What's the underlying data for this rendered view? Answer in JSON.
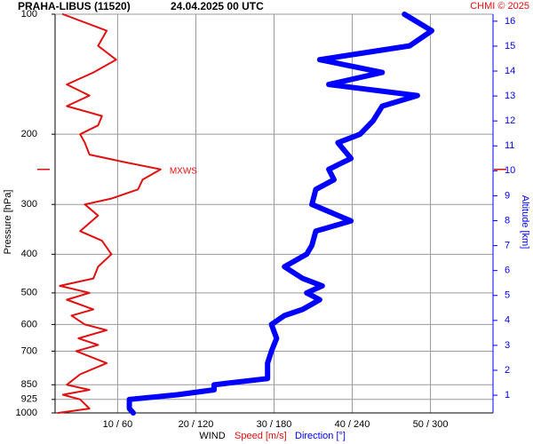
{
  "chart_data": {
    "type": "profile",
    "title": "PRAHA-LIBUS (11520)",
    "date": "24.04.2025 00 UTC",
    "credit": "CHMI © 2025",
    "y_label": "Pressure [hPa]",
    "y2_label": "Altitude [km]",
    "x_label": "WIND",
    "ylim": [
      1000,
      100
    ],
    "log_y": true,
    "yticks": [
      100,
      200,
      300,
      400,
      500,
      600,
      700,
      850,
      925,
      1000
    ],
    "y2lim": [
      0.29,
      16.28
    ],
    "y2ticks": [
      1,
      2,
      3,
      4,
      5,
      6,
      7,
      8,
      9,
      10,
      11,
      12,
      13,
      14,
      15,
      16
    ],
    "xlim": [
      2,
      58
    ],
    "x2lim": [
      12,
      348
    ],
    "xticks": [
      {
        "value": 10,
        "label": "10 / 60"
      },
      {
        "value": 20,
        "label": "20 / 120"
      },
      {
        "value": 30,
        "label": "30 / 180"
      },
      {
        "value": 40,
        "label": "40 / 240"
      },
      {
        "value": 50,
        "label": "50 / 300"
      }
    ],
    "grid": true,
    "series": [
      {
        "name": "Speed [m/s]",
        "color": "#e01010",
        "width": 2,
        "pressure": [
          1000,
          975,
          925,
          900,
          875,
          850,
          800,
          750,
          700,
          675,
          650,
          620,
          600,
          570,
          550,
          520,
          500,
          480,
          460,
          430,
          400,
          370,
          350,
          320,
          300,
          290,
          275,
          260,
          245,
          235,
          225,
          210,
          200,
          190,
          180,
          170,
          160,
          150,
          140,
          130,
          120,
          110,
          100
        ],
        "values": [
          2.4,
          6.4,
          5.2,
          3.0,
          6.4,
          3.5,
          5.2,
          8.6,
          4.7,
          7.5,
          5.0,
          8.6,
          5.8,
          4.1,
          6.9,
          3.5,
          6.4,
          2.6,
          6.9,
          7.5,
          9.2,
          8.0,
          5.2,
          7.5,
          5.8,
          9.2,
          12.6,
          13.2,
          15.5,
          10.9,
          6.4,
          5.8,
          5.2,
          7.5,
          8.0,
          3.5,
          6.4,
          3.5,
          6.9,
          9.8,
          7.5,
          8.6,
          3.0
        ]
      },
      {
        "name": "Direction [°]",
        "color": "#0000ff",
        "width": 6,
        "axis": "x2",
        "pressure": [
          1000,
          975,
          925,
          900,
          875,
          850,
          820,
          800,
          750,
          700,
          650,
          600,
          570,
          550,
          520,
          500,
          480,
          460,
          430,
          400,
          380,
          350,
          330,
          300,
          275,
          260,
          245,
          230,
          210,
          200,
          185,
          170,
          160,
          150,
          140,
          130,
          120,
          110,
          100
        ],
        "values": [
          72,
          69,
          69,
          106,
          134,
          134,
          175,
          175,
          175,
          178,
          182,
          178,
          188,
          202,
          215,
          205,
          217,
          202,
          188,
          205,
          209,
          212,
          239,
          209,
          212,
          226,
          222,
          239,
          229,
          246,
          256,
          263,
          290,
          222,
          263,
          215,
          284,
          301,
          280
        ]
      }
    ],
    "annotation": {
      "text": "MXWS",
      "pressure": 245,
      "color": "#e01010"
    }
  }
}
